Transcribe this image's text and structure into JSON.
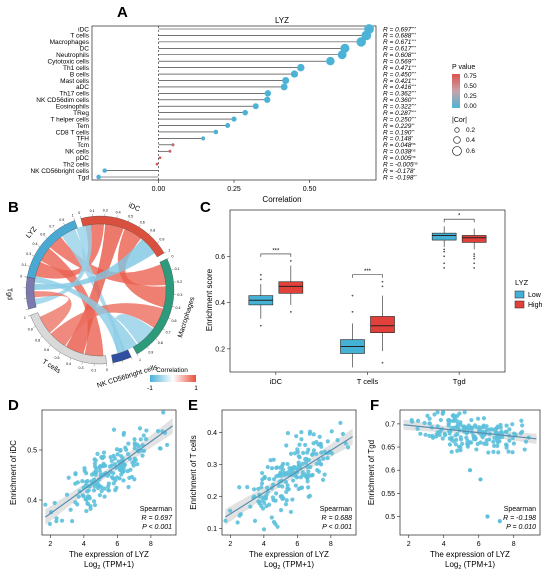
{
  "panel_labels": {
    "A": "A",
    "B": "B",
    "C": "C",
    "D": "D",
    "E": "E",
    "F": "F"
  },
  "legend_A": {
    "p_title": "P value",
    "p_ticks": [
      "0.75",
      "0.50",
      "0.25",
      "0.00"
    ],
    "cor_title": "|Cor|",
    "cor_ticks": [
      "0.2",
      "0.4",
      "0.6"
    ],
    "colors": {
      "high_p": "#e0524f",
      "low_p": "#4db3d6"
    }
  },
  "legend_B": {
    "title": "Correlation",
    "min_label": "-1",
    "max_label": "1"
  },
  "legend_C": {
    "title": "LYZ",
    "low": "Low",
    "high": "High",
    "low_color": "#45b2d5",
    "high_color": "#e2403a"
  },
  "stats_D": {
    "method": "Spearman",
    "r_text": "R = 0.697",
    "p_text": "P < 0.001"
  },
  "stats_E": {
    "method": "Spearman",
    "r_text": "R = 0.688",
    "p_text": "P < 0.001"
  },
  "stats_F": {
    "method": "Spearman",
    "r_text": "R = -0.198",
    "p_text": "P = 0.010"
  },
  "chart_data": [
    {
      "panel": "A",
      "type": "lollipop",
      "title": "LYZ",
      "xlabel": "Correlation",
      "xlim": [
        -0.22,
        0.72
      ],
      "xticks": [
        0.0,
        0.25,
        0.5
      ],
      "xtick_labels": [
        "0.00",
        "0.25",
        "0.50"
      ],
      "categories": [
        "iDC",
        "T cells",
        "Macrophages",
        "DC",
        "Neutrophils",
        "Cytotoxic cells",
        "Th1 cells",
        "B cells",
        "Mast cells",
        "aDC",
        "Th17 cells",
        "NK CD56dim cells",
        "Eosinophils",
        "TReg",
        "T helper cells",
        "Tem",
        "CD8 T cells",
        "TFH",
        "Tcm",
        "NK cells",
        "pDC",
        "Th2 cells",
        "NK CD56bright cells",
        "Tgd"
      ],
      "values": [
        0.697,
        0.688,
        0.671,
        0.617,
        0.608,
        0.569,
        0.471,
        0.45,
        0.421,
        0.416,
        0.362,
        0.36,
        0.322,
        0.287,
        0.25,
        0.229,
        0.19,
        0.148,
        0.048,
        0.038,
        0.005,
        -0.005,
        -0.178,
        -0.198
      ],
      "r_labels": [
        "R = 0.697",
        "R = 0.688",
        "R = 0.671",
        "R = 0.617",
        "R = 0.608",
        "R = 0.569",
        "R = 0.471",
        "R = 0.450",
        "R = 0.421",
        "R = 0.416",
        "R = 0.362",
        "R = 0.360",
        "R = 0.322",
        "R = 0.287",
        "R = 0.250",
        "R = 0.229",
        "R = 0.190",
        "R = 0.148",
        "R = 0.048",
        "R = 0.038",
        "R = 0.005",
        "R = -0.005",
        "R = -0.178",
        "R = -0.198"
      ],
      "sig_labels": [
        "***",
        "***",
        "***",
        "***",
        "***",
        "***",
        "***",
        "***",
        "***",
        "***",
        "***",
        "***",
        "***",
        "***",
        "***",
        "**",
        "**",
        "*",
        "ns",
        "ns",
        "ns",
        "ns",
        "*",
        "**"
      ],
      "p_values": [
        0.0,
        0.0,
        0.0,
        0.0,
        0.0,
        0.0,
        0.0,
        0.0,
        0.0,
        0.0,
        0.0,
        0.0,
        0.0,
        0.0,
        0.0,
        0.001,
        0.007,
        0.05,
        0.52,
        0.62,
        0.95,
        0.95,
        0.02,
        0.01
      ]
    },
    {
      "panel": "B",
      "type": "chord",
      "sectors": [
        "LYZ",
        "iDC",
        "Macrophages",
        "NK CD56bright cells",
        "T cells",
        "Tgd"
      ],
      "sector_colors": [
        "#4aa9d2",
        "#d9513e",
        "#2e9a7c",
        "#2f4fa0",
        "#d9d9d9",
        "#7b79b0"
      ],
      "sector_tick_labels": [
        "0",
        "0.1",
        "0.2",
        "0.3",
        "0.4",
        "0.5",
        "0.6",
        "0.7",
        "0.8",
        "0.9",
        "1"
      ],
      "links": [
        {
          "from": "LYZ",
          "to": "iDC",
          "value": 0.697
        },
        {
          "from": "LYZ",
          "to": "T cells",
          "value": 0.688
        },
        {
          "from": "LYZ",
          "to": "Macrophages",
          "value": 0.671
        },
        {
          "from": "LYZ",
          "to": "NK CD56bright cells",
          "value": -0.178
        },
        {
          "from": "LYZ",
          "to": "Tgd",
          "value": -0.198
        },
        {
          "from": "iDC",
          "to": "T cells",
          "value": 0.75
        },
        {
          "from": "iDC",
          "to": "Macrophages",
          "value": 0.7
        },
        {
          "from": "Macrophages",
          "to": "T cells",
          "value": 0.6
        },
        {
          "from": "Tgd",
          "to": "T cells",
          "value": 0.55
        },
        {
          "from": "Tgd",
          "to": "iDC",
          "value": -0.3
        },
        {
          "from": "NK CD56bright cells",
          "to": "Macrophages",
          "value": -0.2
        },
        {
          "from": "Tgd",
          "to": "Macrophages",
          "value": -0.25
        }
      ]
    },
    {
      "panel": "C",
      "type": "boxplot",
      "ylabel": "Enrichment score",
      "ylim": [
        0.1,
        0.8
      ],
      "yticks": [
        0.2,
        0.4,
        0.6
      ],
      "categories": [
        "iDC",
        "T cells",
        "Tgd"
      ],
      "significance": [
        "***",
        "***",
        "*"
      ],
      "series": [
        {
          "name": "Low",
          "boxes": [
            {
              "min": 0.33,
              "q1": 0.39,
              "median": 0.41,
              "q3": 0.43,
              "max": 0.48,
              "outliers": [
                0.5,
                0.52,
                0.3
              ]
            },
            {
              "min": 0.12,
              "q1": 0.18,
              "median": 0.21,
              "q3": 0.24,
              "max": 0.31,
              "outliers": [
                0.36,
                0.43
              ]
            },
            {
              "min": 0.64,
              "q1": 0.67,
              "median": 0.69,
              "q3": 0.7,
              "max": 0.73,
              "outliers": [
                0.55,
                0.57,
                0.6,
                0.62,
                0.63
              ]
            }
          ]
        },
        {
          "name": "High",
          "boxes": [
            {
              "min": 0.39,
              "q1": 0.44,
              "median": 0.47,
              "q3": 0.49,
              "max": 0.56,
              "outliers": [
                0.36,
                0.58
              ]
            },
            {
              "min": 0.19,
              "q1": 0.27,
              "median": 0.3,
              "q3": 0.34,
              "max": 0.43,
              "outliers": [
                0.14,
                0.47,
                0.49
              ]
            },
            {
              "min": 0.63,
              "q1": 0.66,
              "median": 0.68,
              "q3": 0.69,
              "max": 0.72,
              "outliers": [
                0.55,
                0.57,
                0.59,
                0.6,
                0.61
              ]
            }
          ]
        }
      ]
    },
    {
      "panel": "D",
      "type": "scatter",
      "xlabel": "The expression of LYZ",
      "xlabel2": "Log2 (TPM+1)",
      "ylabel": "Enrichment of iDC",
      "xlim": [
        1.5,
        9.5
      ],
      "ylim": [
        0.33,
        0.58
      ],
      "xticks": [
        2,
        4,
        6,
        8
      ],
      "yticks": [
        0.4,
        0.5
      ],
      "fit": {
        "intercept": 0.325,
        "slope": 0.024
      },
      "n": 190,
      "seed": 11,
      "noise": 0.028,
      "x_mean": 5.5,
      "x_sd": 1.4
    },
    {
      "panel": "E",
      "type": "scatter",
      "xlabel": "The expression of LYZ",
      "xlabel2": "Log2 (TPM+1)",
      "ylabel": "Enrichment of T cells",
      "xlim": [
        1.5,
        9.5
      ],
      "ylim": [
        0.08,
        0.47
      ],
      "xticks": [
        2,
        4,
        6,
        8
      ],
      "yticks": [
        0.1,
        0.2,
        0.3,
        0.4
      ],
      "fit": {
        "intercept": 0.08,
        "slope": 0.033
      },
      "n": 190,
      "seed": 23,
      "noise": 0.045,
      "x_mean": 5.5,
      "x_sd": 1.4
    },
    {
      "panel": "F",
      "type": "scatter",
      "xlabel": "The expression of LYZ",
      "xlabel2": "Log2 (TPM+1)",
      "ylabel": "Enrichment of Tgd",
      "xlim": [
        1.5,
        9.5
      ],
      "ylim": [
        0.46,
        0.73
      ],
      "xticks": [
        2,
        4,
        6,
        8
      ],
      "yticks": [
        0.5,
        0.55,
        0.6,
        0.65,
        0.7
      ],
      "fit": {
        "intercept": 0.705,
        "slope": -0.004
      },
      "n": 190,
      "seed": 37,
      "noise": 0.02,
      "x_mean": 5.5,
      "x_sd": 1.4,
      "extra_outliers": [
        [
          6.5,
          0.5
        ],
        [
          7.2,
          0.49
        ],
        [
          6.1,
          0.58
        ],
        [
          5.5,
          0.6
        ]
      ]
    }
  ]
}
